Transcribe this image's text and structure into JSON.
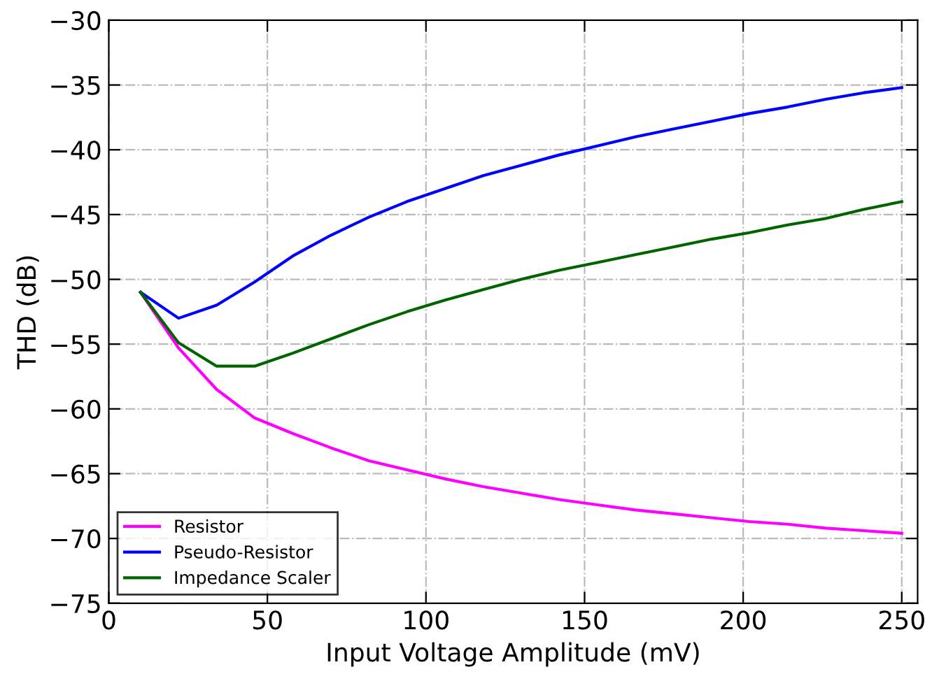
{
  "chart_data": {
    "type": "line",
    "xlabel": "Input Voltage Amplitude (mV)",
    "ylabel": "THD (dB)",
    "x": [
      10,
      22,
      34,
      46,
      58,
      70,
      82,
      94,
      106,
      118,
      130,
      142,
      154,
      166,
      178,
      190,
      202,
      214,
      226,
      238,
      250
    ],
    "series": [
      {
        "name": "Resistor",
        "color": "#ff00ff",
        "values": [
          -51,
          -55.3,
          -58.5,
          -60.7,
          -61.9,
          -63,
          -64,
          -64.7,
          -65.4,
          -66,
          -66.5,
          -67,
          -67.4,
          -67.8,
          -68.1,
          -68.4,
          -68.7,
          -68.9,
          -69.2,
          -69.4,
          -69.6
        ]
      },
      {
        "name": "Pseudo-Resistor",
        "color": "#0000ff",
        "values": [
          -51,
          -53,
          -52,
          -50.2,
          -48.2,
          -46.6,
          -45.2,
          -44,
          -43,
          -42,
          -41.2,
          -40.4,
          -39.7,
          -39,
          -38.4,
          -37.8,
          -37.2,
          -36.7,
          -36.1,
          -35.6,
          -35.2
        ]
      },
      {
        "name": "Impedance Scaler",
        "color": "#006400",
        "values": [
          -51,
          -54.9,
          -56.7,
          -56.7,
          -55.7,
          -54.6,
          -53.5,
          -52.5,
          -51.6,
          -50.8,
          -50,
          -49.3,
          -48.7,
          -48.1,
          -47.5,
          -46.9,
          -46.4,
          -45.8,
          -45.3,
          -44.6,
          -44
        ]
      }
    ],
    "xlim": [
      0,
      255
    ],
    "xticks": [
      0,
      50,
      100,
      150,
      200,
      250
    ],
    "ylim": [
      -75,
      -30
    ],
    "yticks": [
      {
        "value": -75,
        "label": "−75"
      },
      {
        "value": -70,
        "label": "−70"
      },
      {
        "value": -65,
        "label": "−65"
      },
      {
        "value": -60,
        "label": "−60"
      },
      {
        "value": -55,
        "label": "−55"
      },
      {
        "value": -50,
        "label": "−50"
      },
      {
        "value": -45,
        "label": "−45"
      },
      {
        "value": -40,
        "label": "−40"
      },
      {
        "value": -35,
        "label": "−35"
      },
      {
        "value": -30,
        "label": "−30"
      }
    ],
    "grid": true,
    "legend": "bottom left",
    "line_style": "solid",
    "marker": "none"
  }
}
